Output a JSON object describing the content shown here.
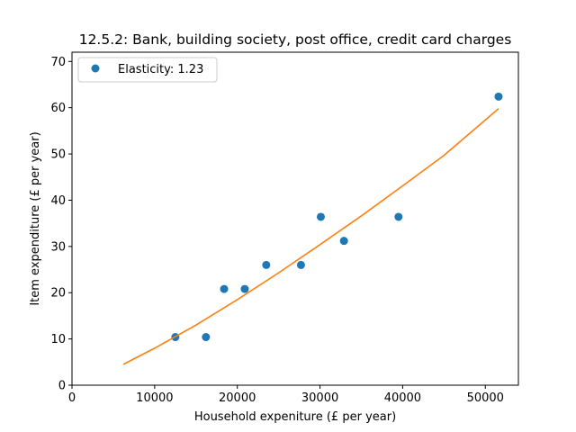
{
  "chart_data": {
    "type": "scatter",
    "title": "12.5.2: Bank, building society, post office, credit card charges",
    "xlabel": "Household expeniture (£ per year)",
    "ylabel": "Item expenditure (£ per year)",
    "xlim": [
      0,
      54000
    ],
    "ylim": [
      0,
      72
    ],
    "xticks": [
      0,
      10000,
      20000,
      30000,
      40000,
      50000
    ],
    "yticks": [
      0,
      10,
      20,
      30,
      40,
      50,
      60,
      70
    ],
    "legend_position": "upper-left",
    "series": [
      {
        "name": "Elasticity: 1.23",
        "kind": "scatter",
        "color": "#1f77b4",
        "x": [
          12500,
          16200,
          18400,
          20900,
          23500,
          27700,
          30100,
          32900,
          39500,
          51600
        ],
        "y": [
          10.4,
          10.4,
          20.8,
          20.8,
          26.0,
          26.0,
          36.4,
          31.2,
          36.4,
          62.4
        ]
      },
      {
        "kind": "line",
        "color": "#ff7f0e",
        "x": [
          6200,
          10000,
          15000,
          20000,
          25000,
          30000,
          35000,
          40000,
          45000,
          51600
        ],
        "y": [
          4.5,
          8.0,
          13.0,
          18.5,
          24.3,
          30.4,
          36.6,
          43.1,
          49.7,
          59.8
        ]
      }
    ]
  }
}
